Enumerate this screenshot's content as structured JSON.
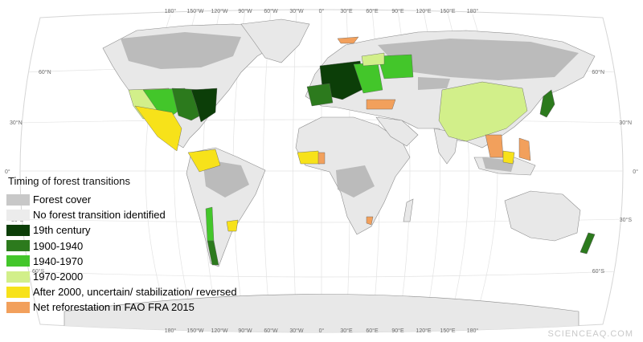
{
  "map": {
    "top_lon_labels": [
      "180°",
      "150°W",
      "120°W",
      "90°W",
      "60°W",
      "30°W",
      "0°",
      "30°E",
      "60°E",
      "90°E",
      "120°E",
      "150°E",
      "180°"
    ],
    "bottom_lon_labels": [
      "180°",
      "150°W",
      "120°W",
      "90°W",
      "60°W",
      "30°W",
      "0°",
      "30°E",
      "60°E",
      "90°E",
      "120°E",
      "150°E",
      "180°"
    ],
    "left_lat_labels": [
      "60°N",
      "30°N",
      "0°",
      "30°S",
      "60°S"
    ],
    "right_lat_labels": [
      "60°N",
      "30°N",
      "0°",
      "30°S",
      "60°S"
    ],
    "colors": {
      "ocean": "#ffffff",
      "land": "#e8e8e8",
      "country_border": "#8c8c8c",
      "graticule": "#e3e3e3",
      "forest": "#b3b3b3"
    }
  },
  "legend": {
    "title": "Timing of forest transitions",
    "items": [
      {
        "label": "Forest cover",
        "color": "#c8c8c8"
      },
      {
        "label": "No forest transition identified",
        "color": "#ececec"
      },
      {
        "label": "19th century",
        "color": "#0c3e08"
      },
      {
        "label": "1900-1940",
        "color": "#2c7a1d"
      },
      {
        "label": "1940-1970",
        "color": "#43c62a"
      },
      {
        "label": "1970-2000",
        "color": "#d2ef8a"
      },
      {
        "label": "After 2000, uncertain/ stabilization/ reversed",
        "color": "#f7e21a"
      },
      {
        "label": "Net reforestation in FAO FRA 2015",
        "color": "#f2a05c"
      }
    ]
  },
  "watermark": "SCIENCEAQ.COM"
}
